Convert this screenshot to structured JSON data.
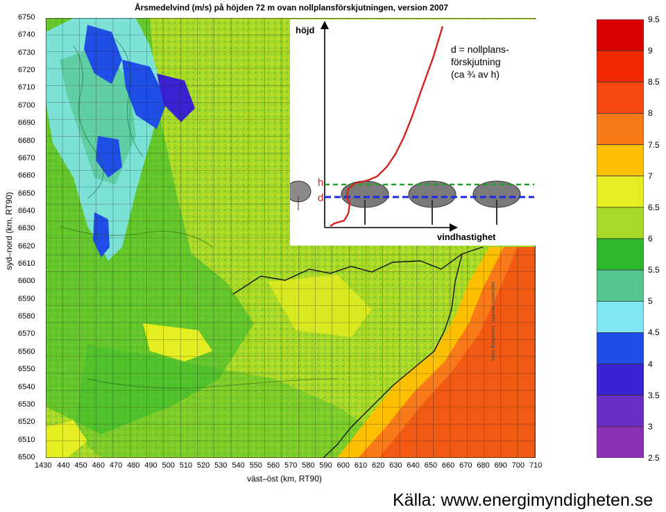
{
  "title": "Årsmedelvind (m/s) på höjden 72 m ovan nollplansförskjutningen, version 2007",
  "y_axis": {
    "title": "syd–nord (km, RT90)",
    "ticks": [
      "6750",
      "6740",
      "6730",
      "6720",
      "6710",
      "6700",
      "6690",
      "6680",
      "6670",
      "6660",
      "6650",
      "6640",
      "6630",
      "6620",
      "6610",
      "6600",
      "6590",
      "6580",
      "6570",
      "6560",
      "6550",
      "6540",
      "6530",
      "6520",
      "6510",
      "6500"
    ]
  },
  "x_axis": {
    "title": "väst–öst (km, RT90)",
    "ticks": [
      "1430",
      "440",
      "450",
      "460",
      "470",
      "480",
      "490",
      "500",
      "510",
      "520",
      "530",
      "540",
      "550",
      "560",
      "570",
      "580",
      "590",
      "600",
      "610",
      "620",
      "630",
      "640",
      "650",
      "660",
      "670",
      "680",
      "690",
      "700",
      "710"
    ]
  },
  "legend": {
    "labels": [
      "9.5",
      "9",
      "8.5",
      "8",
      "7.5",
      "7",
      "6.5",
      "6",
      "5.5",
      "5",
      "4.5",
      "4",
      "3.5",
      "3",
      "2.5"
    ],
    "colors": [
      "#d80000",
      "#f42800",
      "#f84a10",
      "#f87a18",
      "#fcc000",
      "#e4ee20",
      "#a8d828",
      "#2eb82e",
      "#54c890",
      "#80e6f4",
      "#1e4ee6",
      "#3a22d0",
      "#6a2ec6",
      "#8a30b4"
    ]
  },
  "inset": {
    "y_label": "höjd",
    "x_label": "vindhastighet",
    "h_label": "h",
    "d_label": "d",
    "note_lines": [
      "d = nollplans-",
      "förskjutning",
      "(ca ¾ av h)"
    ]
  },
  "credit": "Hans Bergström, Uppsala universitet",
  "source": "Källa: www.energimyndigheten.se",
  "colors": {
    "profile_curve": "#d42020",
    "h_line": "#2a9a2a",
    "d_line": "#1a2ad8",
    "sea": "#f25a14"
  }
}
